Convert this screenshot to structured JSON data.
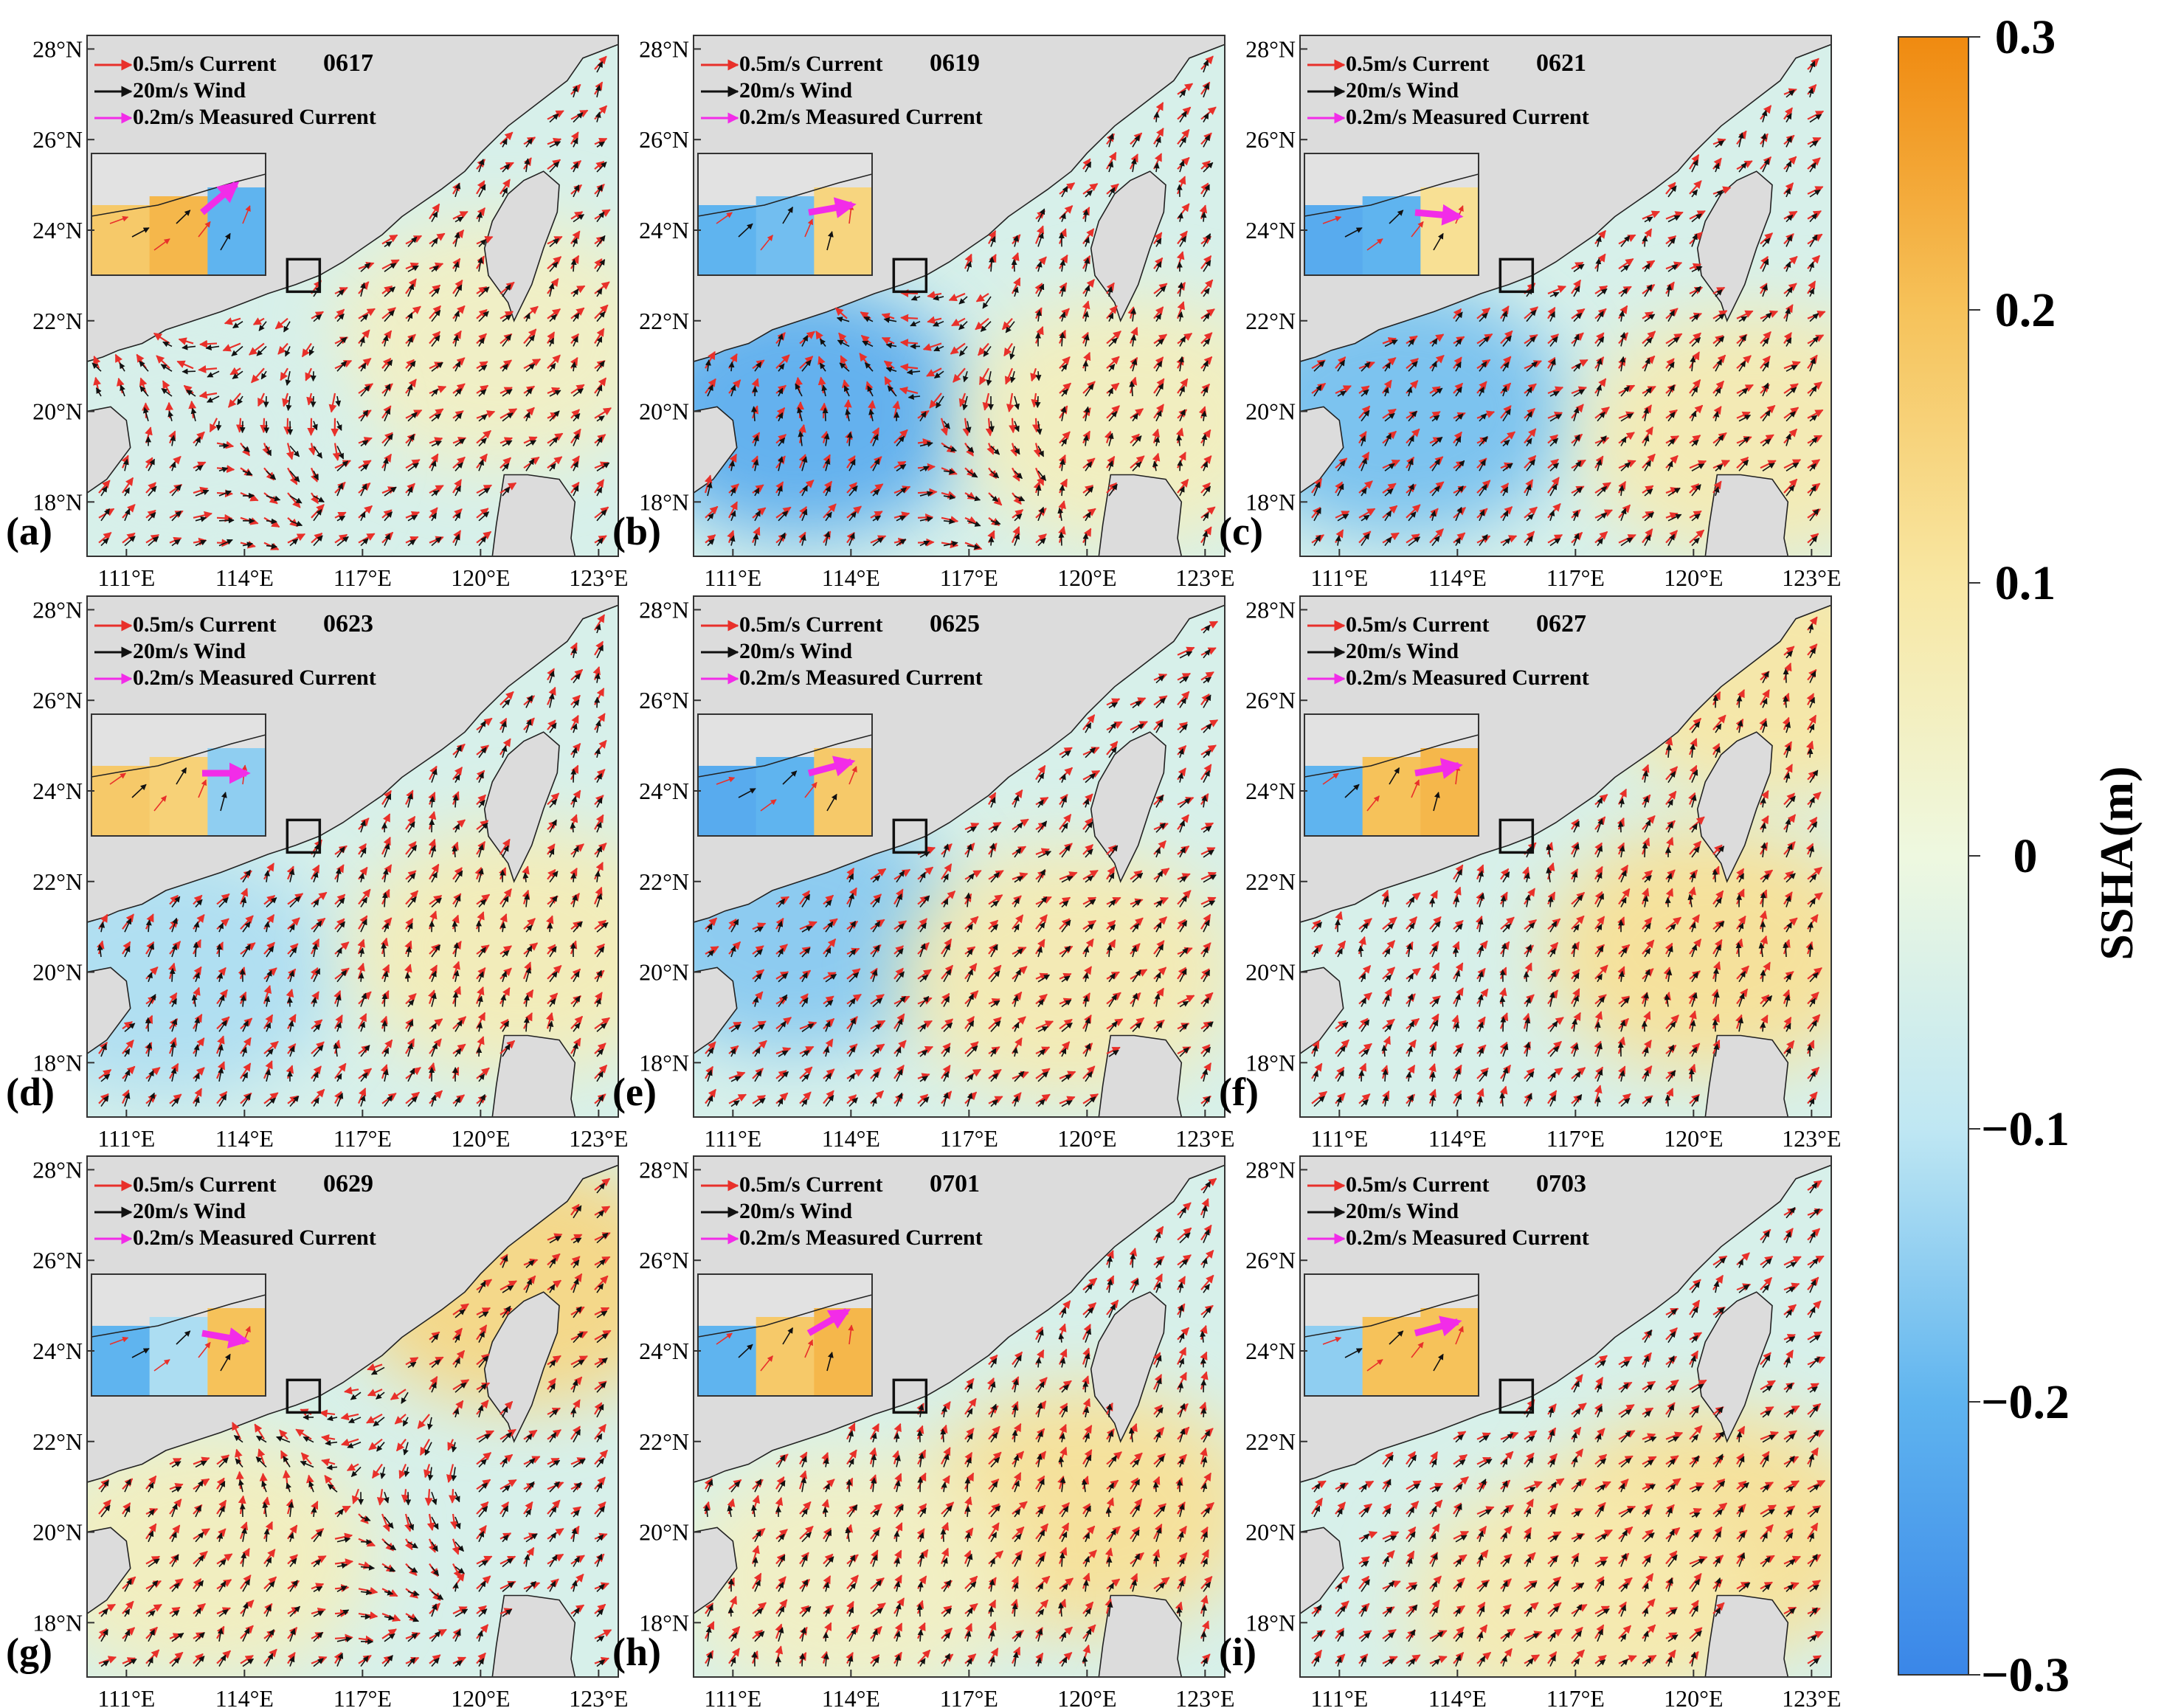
{
  "chart_data": {
    "type": "quiver-map-grid",
    "title": "",
    "layout": "3x3",
    "lon_ticks": [
      "111°E",
      "114°E",
      "117°E",
      "120°E",
      "123°E"
    ],
    "lat_ticks": [
      "28°N",
      "26°N",
      "24°N",
      "22°N",
      "20°N",
      "18°N"
    ],
    "lon_range": [
      110.0,
      123.5
    ],
    "lat_range": [
      16.8,
      28.3
    ],
    "legend": {
      "current": "0.5m/s  Current",
      "wind": "20m/s  Wind",
      "measured": "0.2m/s  Measured Current"
    },
    "colorbar": {
      "label": "SSHA(m)",
      "range": [
        -0.3,
        0.3
      ],
      "ticks": [
        "0.3",
        "0.2",
        "0.1",
        "0",
        "−0.1",
        "−0.2",
        "−0.3"
      ],
      "colors": [
        "#3a86e8",
        "#5fb4ef",
        "#bfe7f3",
        "#eef8e0",
        "#f8e7a3",
        "#f6c25a",
        "#f08a10"
      ]
    },
    "panels": [
      {
        "letter": "(a)",
        "date": "0617",
        "eddy": {
          "lon": 113.2,
          "lat": 19.8,
          "sense": "cw"
        },
        "ssha_regions": [
          {
            "lon": 120.5,
            "lat": 21.5,
            "value": 0.05
          },
          {
            "lon": 112.5,
            "lat": 19.5,
            "value": -0.05
          }
        ],
        "measured_dir_deg": 40,
        "inset_ssha": [
          0.18,
          0.22,
          -0.2
        ]
      },
      {
        "letter": "(b)",
        "date": "0619",
        "eddy": {
          "lon": 115.8,
          "lat": 20.0,
          "sense": "cw"
        },
        "ssha_regions": [
          {
            "lon": 112.8,
            "lat": 20.0,
            "value": -0.22
          },
          {
            "lon": 121.0,
            "lat": 19.8,
            "value": 0.06
          }
        ],
        "measured_dir_deg": 10,
        "inset_ssha": [
          -0.2,
          -0.18,
          0.15
        ]
      },
      {
        "letter": "(c)",
        "date": "0621",
        "eddy": null,
        "ssha_regions": [
          {
            "lon": 112.5,
            "lat": 20.0,
            "value": -0.18
          },
          {
            "lon": 121.5,
            "lat": 19.5,
            "value": 0.08
          }
        ],
        "measured_dir_deg": -5,
        "inset_ssha": [
          -0.22,
          -0.2,
          0.12
        ]
      },
      {
        "letter": "(d)",
        "date": "0623",
        "eddy": null,
        "ssha_regions": [
          {
            "lon": 112.0,
            "lat": 20.0,
            "value": -0.12
          },
          {
            "lon": 121.0,
            "lat": 20.5,
            "value": 0.07
          }
        ],
        "measured_dir_deg": 0,
        "inset_ssha": [
          0.18,
          0.16,
          -0.15
        ]
      },
      {
        "letter": "(e)",
        "date": "0625",
        "eddy": null,
        "ssha_regions": [
          {
            "lon": 112.5,
            "lat": 21.0,
            "value": -0.16
          },
          {
            "lon": 119.5,
            "lat": 20.0,
            "value": 0.08
          }
        ],
        "measured_dir_deg": 15,
        "inset_ssha": [
          -0.22,
          -0.2,
          0.18
        ]
      },
      {
        "letter": "(f)",
        "date": "0627",
        "eddy": null,
        "ssha_regions": [
          {
            "lon": 120.5,
            "lat": 20.5,
            "value": 0.12
          },
          {
            "lon": 122.0,
            "lat": 26.5,
            "value": 0.1
          }
        ],
        "measured_dir_deg": 10,
        "inset_ssha": [
          -0.2,
          0.2,
          0.22
        ]
      },
      {
        "letter": "(g)",
        "date": "0629",
        "eddy": {
          "lon": 116.5,
          "lat": 20.8,
          "sense": "cw"
        },
        "ssha_regions": [
          {
            "lon": 121.0,
            "lat": 25.5,
            "value": 0.15
          },
          {
            "lon": 113.0,
            "lat": 19.5,
            "value": 0.06
          }
        ],
        "measured_dir_deg": -10,
        "inset_ssha": [
          -0.2,
          -0.12,
          0.2
        ]
      },
      {
        "letter": "(h)",
        "date": "0701",
        "eddy": null,
        "ssha_regions": [
          {
            "lon": 120.0,
            "lat": 20.5,
            "value": 0.12
          },
          {
            "lon": 114.0,
            "lat": 19.0,
            "value": 0.05
          }
        ],
        "measured_dir_deg": 30,
        "inset_ssha": [
          -0.2,
          0.18,
          0.22
        ]
      },
      {
        "letter": "(i)",
        "date": "0703",
        "eddy": null,
        "ssha_regions": [
          {
            "lon": 120.5,
            "lat": 20.0,
            "value": 0.12
          },
          {
            "lon": 117.0,
            "lat": 18.5,
            "value": 0.08
          }
        ],
        "measured_dir_deg": 15,
        "inset_ssha": [
          -0.15,
          0.2,
          0.2
        ]
      }
    ]
  }
}
